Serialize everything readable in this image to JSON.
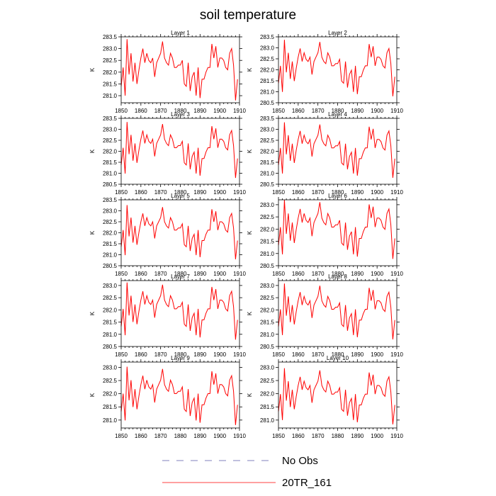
{
  "title": "soil temperature",
  "series_color": "#ff0000",
  "obs_color": "#5a5aa8",
  "legend": {
    "no_obs_label": "No Obs",
    "model_label": "20TR_161"
  },
  "chart_data": {
    "type": "line",
    "title": "soil temperature",
    "x": [
      1850,
      1851,
      1852,
      1853,
      1854,
      1855,
      1856,
      1857,
      1858,
      1859,
      1860,
      1861,
      1862,
      1863,
      1864,
      1865,
      1866,
      1867,
      1868,
      1869,
      1870,
      1871,
      1872,
      1873,
      1874,
      1875,
      1876,
      1877,
      1878,
      1879,
      1880,
      1881,
      1882,
      1883,
      1884,
      1885,
      1886,
      1887,
      1888,
      1889,
      1890,
      1891,
      1892,
      1893,
      1894,
      1895,
      1896,
      1897,
      1898,
      1899,
      1900,
      1901,
      1902,
      1903,
      1904,
      1905,
      1906,
      1907,
      1908,
      1909
    ],
    "xlim": [
      1850,
      1910
    ],
    "xticks": [
      1850,
      1860,
      1870,
      1880,
      1890,
      1900,
      1910
    ],
    "xlabel": "",
    "ylabel": "K",
    "series_name": "20TR_161",
    "panels": [
      {
        "title": "Layer 1",
        "ylim": [
          280.7,
          283.5
        ],
        "yticks": [
          281.0,
          281.5,
          282.0,
          282.5,
          283.0,
          283.5
        ],
        "offset": 0.0,
        "scale": 1.0
      },
      {
        "title": "Layer 2",
        "ylim": [
          280.5,
          283.5
        ],
        "yticks": [
          280.5,
          281.0,
          281.5,
          282.0,
          282.5,
          283.0,
          283.5
        ],
        "offset": -0.02,
        "scale": 0.99
      },
      {
        "title": "Layer 3",
        "ylim": [
          280.5,
          283.5
        ],
        "yticks": [
          280.5,
          281.0,
          281.5,
          282.0,
          282.5,
          283.0,
          283.5
        ],
        "offset": -0.04,
        "scale": 0.98
      },
      {
        "title": "Layer 4",
        "ylim": [
          280.5,
          283.5
        ],
        "yticks": [
          280.5,
          281.0,
          281.5,
          282.0,
          282.5,
          283.0,
          283.5
        ],
        "offset": -0.05,
        "scale": 0.97
      },
      {
        "title": "Layer 5",
        "ylim": [
          280.5,
          283.5
        ],
        "yticks": [
          280.5,
          281.0,
          281.5,
          282.0,
          282.5,
          283.0,
          283.5
        ],
        "offset": -0.08,
        "scale": 0.95
      },
      {
        "title": "Layer 6",
        "ylim": [
          280.5,
          283.2
        ],
        "yticks": [
          280.5,
          281.0,
          281.5,
          282.0,
          282.5,
          283.0
        ],
        "offset": -0.12,
        "scale": 0.93
      },
      {
        "title": "Layer 7",
        "ylim": [
          280.5,
          283.2
        ],
        "yticks": [
          280.5,
          281.0,
          281.5,
          282.0,
          282.5,
          283.0
        ],
        "offset": -0.16,
        "scale": 0.9
      },
      {
        "title": "Layer 8",
        "ylim": [
          280.5,
          283.2
        ],
        "yticks": [
          280.5,
          281.0,
          281.5,
          282.0,
          282.5,
          283.0
        ],
        "offset": -0.18,
        "scale": 0.88
      },
      {
        "title": "Layer 9",
        "ylim": [
          280.7,
          283.2
        ],
        "yticks": [
          281.0,
          281.5,
          282.0,
          282.5,
          283.0
        ],
        "offset": -0.2,
        "scale": 0.85
      },
      {
        "title": "Layer 10",
        "ylim": [
          280.7,
          283.2
        ],
        "yticks": [
          281.0,
          281.5,
          282.0,
          282.5,
          283.0
        ],
        "offset": -0.22,
        "scale": 0.82
      }
    ],
    "base_values": [
      281.4,
      282.2,
      281.0,
      283.4,
      281.9,
      282.8,
      281.6,
      282.4,
      281.5,
      282.1,
      282.6,
      283.0,
      282.4,
      282.8,
      282.5,
      282.4,
      282.6,
      281.8,
      282.4,
      282.6,
      282.8,
      283.3,
      282.6,
      282.4,
      282.3,
      282.8,
      282.6,
      282.2,
      282.2,
      282.3,
      282.3,
      282.5,
      281.5,
      281.4,
      282.4,
      281.2,
      281.8,
      282.0,
      281.0,
      282.2,
      280.9,
      281.7,
      281.7,
      282.0,
      282.2,
      282.2,
      283.2,
      282.6,
      283.1,
      282.2,
      282.6,
      282.6,
      282.5,
      282.2,
      282.1,
      282.8,
      283.0,
      282.3,
      280.8,
      281.7
    ]
  }
}
